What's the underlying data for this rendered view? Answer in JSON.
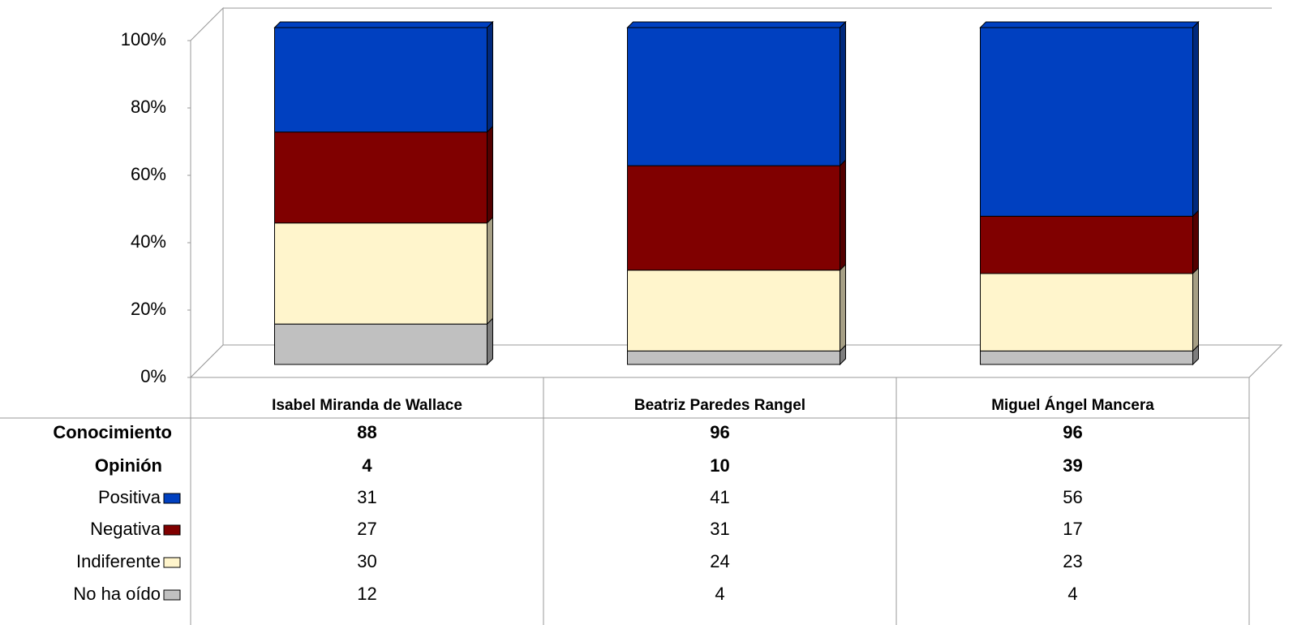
{
  "chart_data": {
    "type": "bar",
    "stacked": true,
    "categories": [
      "Isabel Miranda de Wallace",
      "Beatriz Paredes Rangel",
      "Miguel Ángel Mancera"
    ],
    "table_rows": [
      {
        "name": "Conocimiento",
        "values": [
          88,
          96,
          96
        ]
      },
      {
        "name": "Opinión",
        "values": [
          4,
          10,
          39
        ]
      }
    ],
    "series": [
      {
        "name": "Positiva",
        "color": "#0040c0",
        "values": [
          31,
          41,
          56
        ]
      },
      {
        "name": "Negativa",
        "color": "#800000",
        "values": [
          27,
          31,
          17
        ]
      },
      {
        "name": "Indiferente",
        "color": "#fff5cc",
        "values": [
          30,
          24,
          23
        ]
      },
      {
        "name": "No ha oído",
        "color": "#c0c0c0",
        "values": [
          12,
          4,
          4
        ]
      }
    ],
    "ylim": [
      0,
      100
    ],
    "yticks": [
      {
        "value": 0,
        "label": "0%"
      },
      {
        "value": 20,
        "label": "20%"
      },
      {
        "value": 40,
        "label": "40%"
      },
      {
        "value": 60,
        "label": "60%"
      },
      {
        "value": 80,
        "label": "80%"
      },
      {
        "value": 100,
        "label": "100%"
      }
    ]
  }
}
